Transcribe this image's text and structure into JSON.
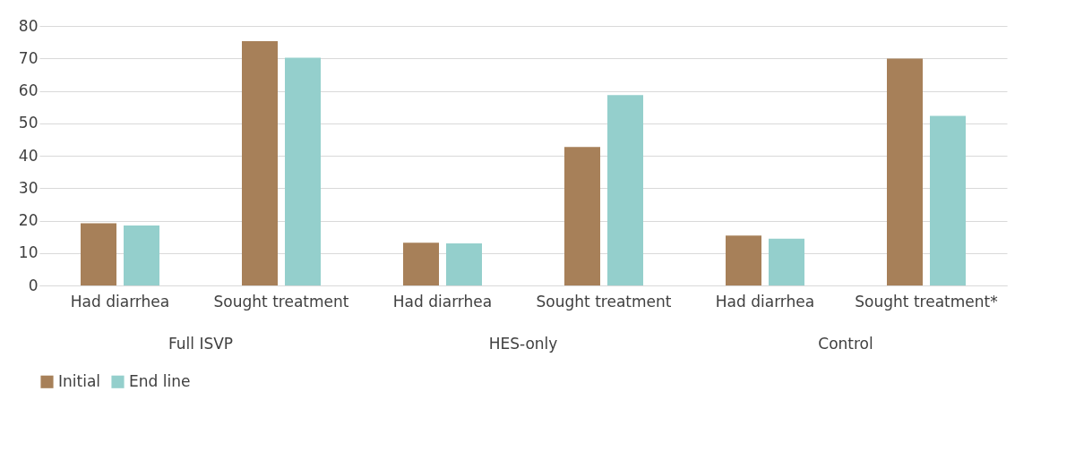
{
  "chart_data": {
    "type": "bar",
    "categories": [
      "Had diarrhea",
      "Sought treatment",
      "Had diarrhea",
      "Sought treatment",
      "Had diarrhea",
      "Sought treatment*"
    ],
    "series": [
      {
        "name": "Initial",
        "color": "#a78059",
        "values": [
          19.2,
          75.3,
          13.2,
          42.7,
          15.4,
          69.9
        ]
      },
      {
        "name": "End line",
        "color": "#94cfcc",
        "values": [
          18.5,
          70.2,
          13.0,
          58.7,
          14.4,
          52.3
        ]
      }
    ],
    "annotations": [
      "Full ISVP",
      "HES-only",
      "Control"
    ],
    "ylim": [
      0,
      80
    ],
    "yticks": [
      0,
      10,
      20,
      30,
      40,
      50,
      60,
      70,
      80
    ],
    "grid": "y",
    "legend": "bottom"
  }
}
